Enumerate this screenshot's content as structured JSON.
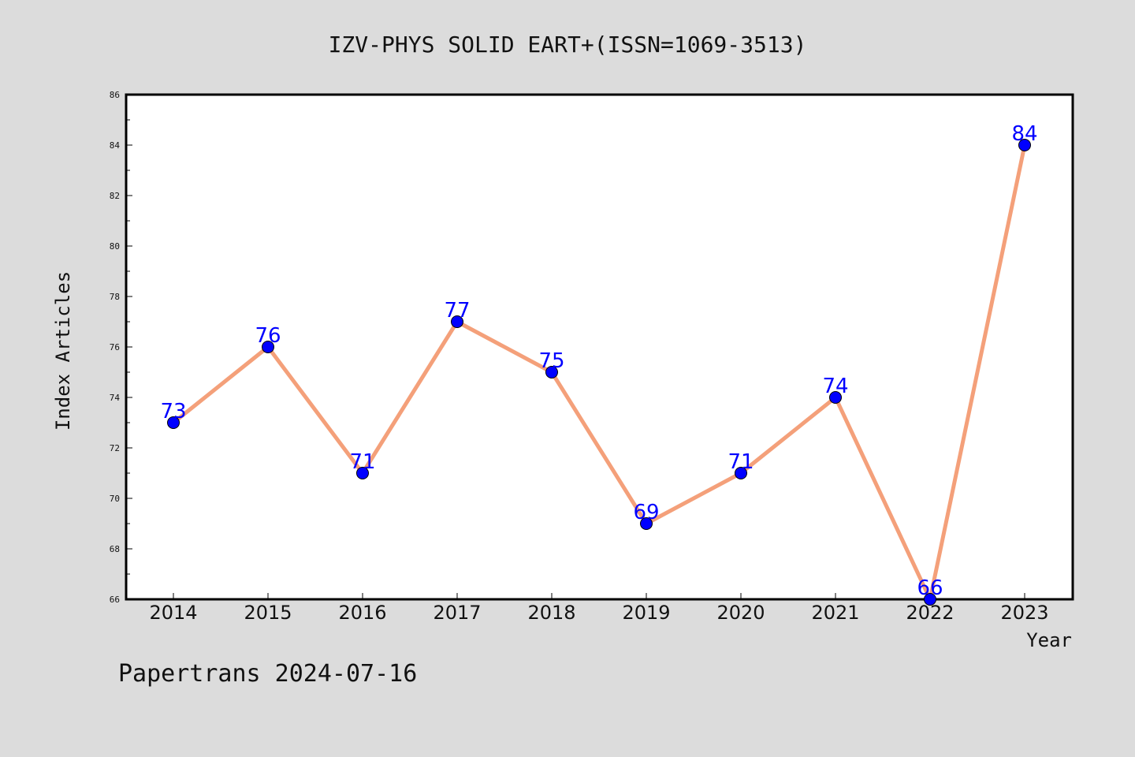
{
  "chart_data": {
    "type": "line",
    "title": "IZV-PHYS SOLID EART+(ISSN=1069-3513)",
    "xlabel": "Year",
    "ylabel": "Index Articles",
    "categories": [
      "2014",
      "2015",
      "2016",
      "2017",
      "2018",
      "2019",
      "2020",
      "2021",
      "2022",
      "2023"
    ],
    "values": [
      73,
      76,
      71,
      77,
      75,
      69,
      71,
      74,
      66,
      84
    ],
    "data_labels": [
      "73",
      "76",
      "71",
      "77",
      "75",
      "69",
      "71",
      "74",
      "66",
      "84"
    ],
    "ylim": [
      66,
      86
    ],
    "yticks": [
      "66",
      "68",
      "70",
      "72",
      "74",
      "76",
      "78",
      "80",
      "82",
      "84",
      "86"
    ],
    "line_color": "#f4a07a",
    "marker_color": "#0000ff",
    "label_color": "#0000ff",
    "grid": false,
    "legend": "none"
  },
  "footer": {
    "text": "Papertrans 2024-07-16"
  }
}
